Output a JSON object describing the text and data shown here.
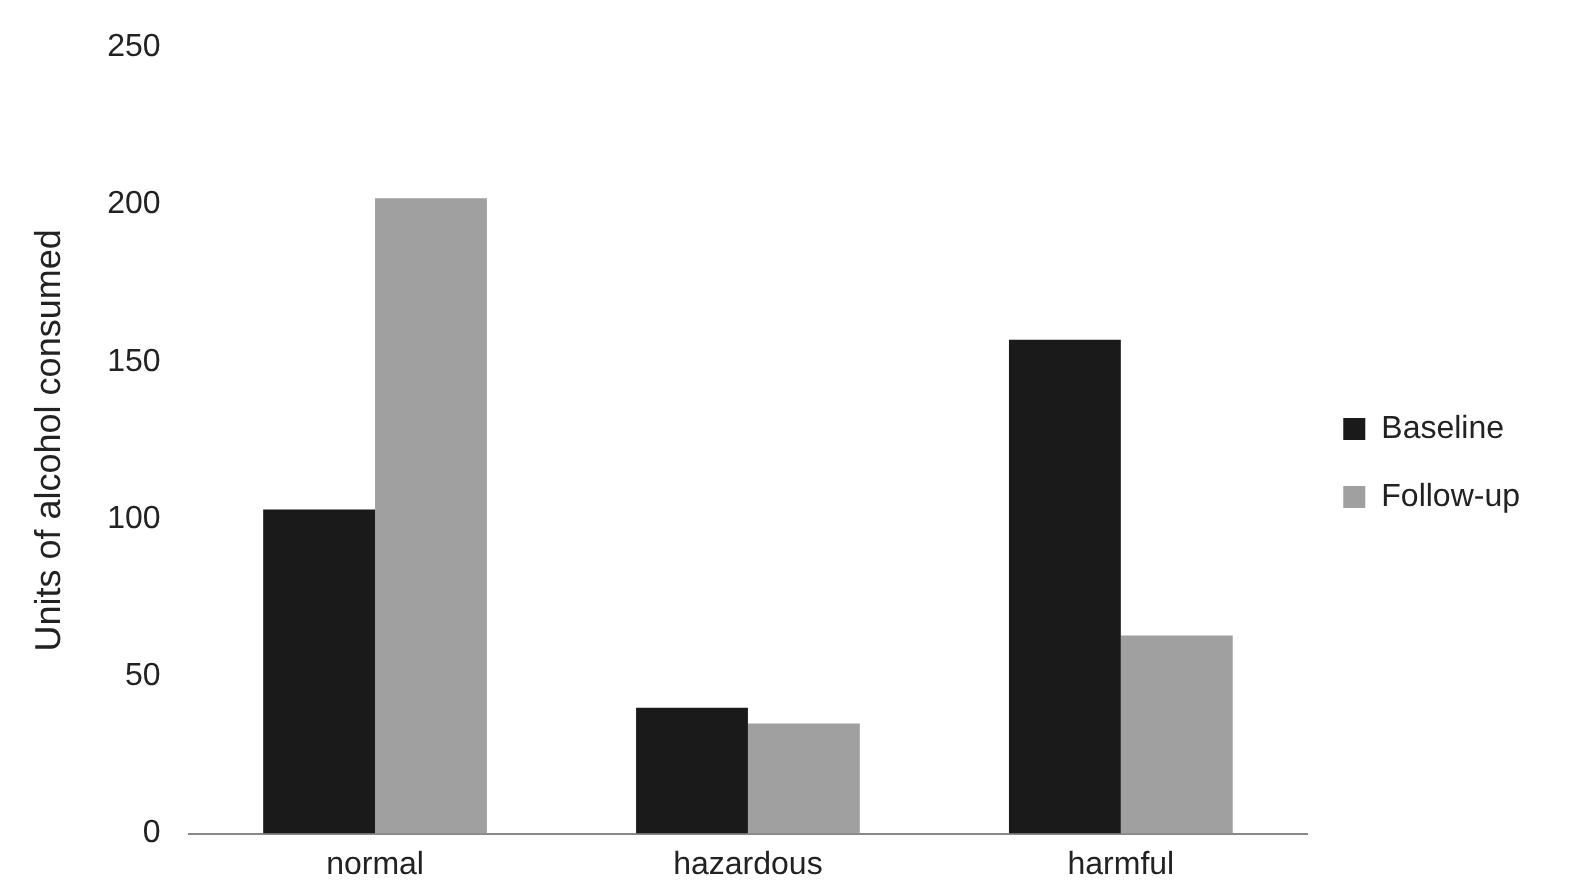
{
  "chart_data": {
    "type": "bar",
    "ylabel": "Units of alcohol consumed",
    "categories": [
      "normal",
      "hazardous",
      "harmful"
    ],
    "series": [
      {
        "name": "Baseline",
        "color": "#1a1a1a",
        "values": [
          103,
          40,
          157
        ]
      },
      {
        "name": "Follow-up",
        "color": "#a0a0a0",
        "values": [
          202,
          35,
          63
        ]
      }
    ],
    "ylim": [
      0,
      250
    ],
    "yticks": [
      0,
      50,
      100,
      150,
      200,
      250
    ],
    "grid": false,
    "legend": "right"
  }
}
